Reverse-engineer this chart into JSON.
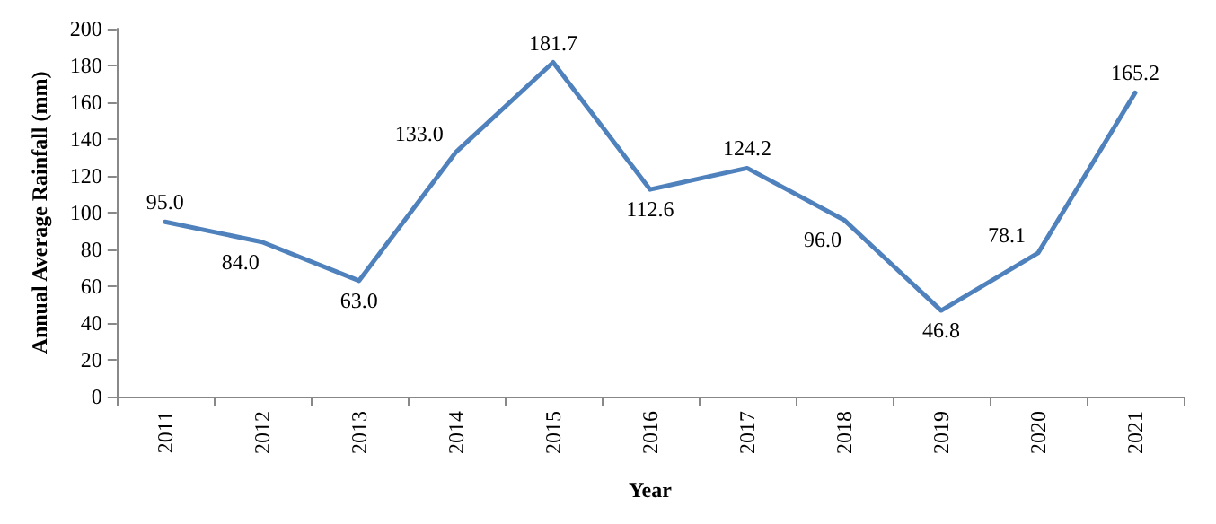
{
  "chart_data": {
    "type": "line",
    "xlabel": "Year",
    "ylabel": "Annual Average Rainfall (mm)",
    "categories": [
      "2011",
      "2012",
      "2013",
      "2014",
      "2015",
      "2016",
      "2017",
      "2018",
      "2019",
      "2020",
      "2021"
    ],
    "series": [
      {
        "color": "#4f81bd",
        "values": [
          95.0,
          84.0,
          63.0,
          133.0,
          181.7,
          112.6,
          124.2,
          96.0,
          46.8,
          78.1,
          165.2
        ],
        "value_labels": [
          "95.0",
          "84.0",
          "63.0",
          "133.0",
          "181.7",
          "112.6",
          "124.2",
          "96.0",
          "46.8",
          "78.1",
          "165.2"
        ]
      }
    ],
    "ylim": [
      0,
      200
    ],
    "yticks": [
      0,
      20,
      40,
      60,
      80,
      100,
      120,
      140,
      160,
      180,
      200
    ],
    "grid": false,
    "marker": "none",
    "line_style": "solid"
  }
}
